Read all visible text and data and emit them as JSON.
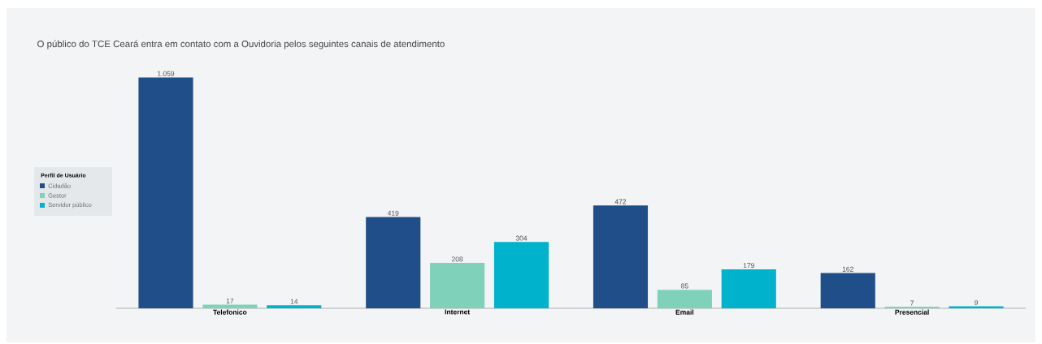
{
  "chart_data": {
    "type": "bar",
    "title": "O público do TCE Ceará entra em contato com a Ouvidoria pelos seguintes canais de atendimento",
    "categories": [
      "Telefonico",
      "Internet",
      "Email",
      "Presencial"
    ],
    "legend_title": "Perfil de Usuário",
    "legend": "left",
    "series": [
      {
        "name": "Cidadão",
        "color": "#1f4e89",
        "values": [
          1059,
          419,
          472,
          162
        ],
        "value_labels": [
          "1.059",
          "419",
          "472",
          "162"
        ]
      },
      {
        "name": "Gestor",
        "color": "#7fd1b9",
        "values": [
          17,
          208,
          85,
          7
        ],
        "value_labels": [
          "17",
          "208",
          "85",
          "7"
        ]
      },
      {
        "name": "Servidor público",
        "color": "#00b2cc",
        "values": [
          14,
          304,
          179,
          9
        ],
        "value_labels": [
          "14",
          "304",
          "179",
          "9"
        ]
      }
    ]
  }
}
